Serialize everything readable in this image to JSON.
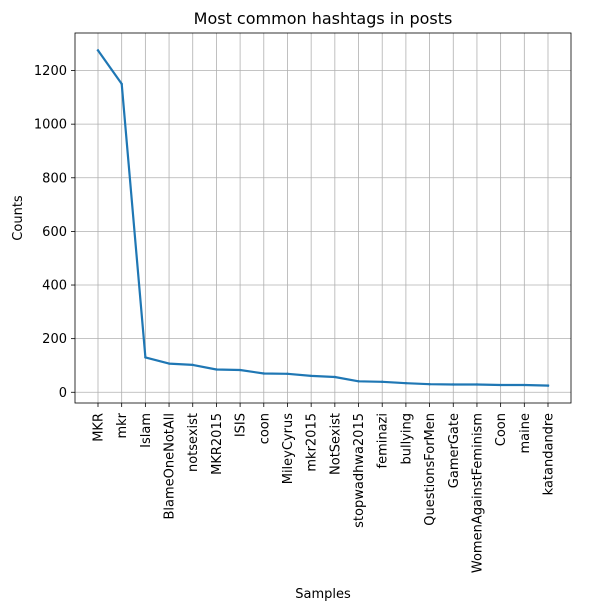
{
  "chart_data": {
    "type": "line",
    "title": "Most common hashtags in posts",
    "xlabel": "Samples",
    "ylabel": "Counts",
    "categories": [
      "MKR",
      "mkr",
      "Islam",
      "BlameOneNotAll",
      "notsexist",
      "MKR2015",
      "ISIS",
      "coon",
      "MileyCyrus",
      "mkr2015",
      "NotSexist",
      "stopwadhwa2015",
      "feminazi",
      "bullying",
      "QuestionsForMen",
      "GamerGate",
      "WomenAgainstFeminism",
      "Coon",
      "maine",
      "katandandre"
    ],
    "values": [
      1275,
      1150,
      130,
      107,
      102,
      85,
      83,
      70,
      69,
      61,
      57,
      41,
      39,
      34,
      30,
      29,
      29,
      27,
      27,
      25
    ],
    "yticks": [
      0,
      200,
      400,
      600,
      800,
      1000,
      1200
    ],
    "ylim": [
      -40,
      1340
    ],
    "grid": true,
    "colors": {
      "line": "#1f77b4",
      "grid": "#b0b0b0"
    }
  }
}
